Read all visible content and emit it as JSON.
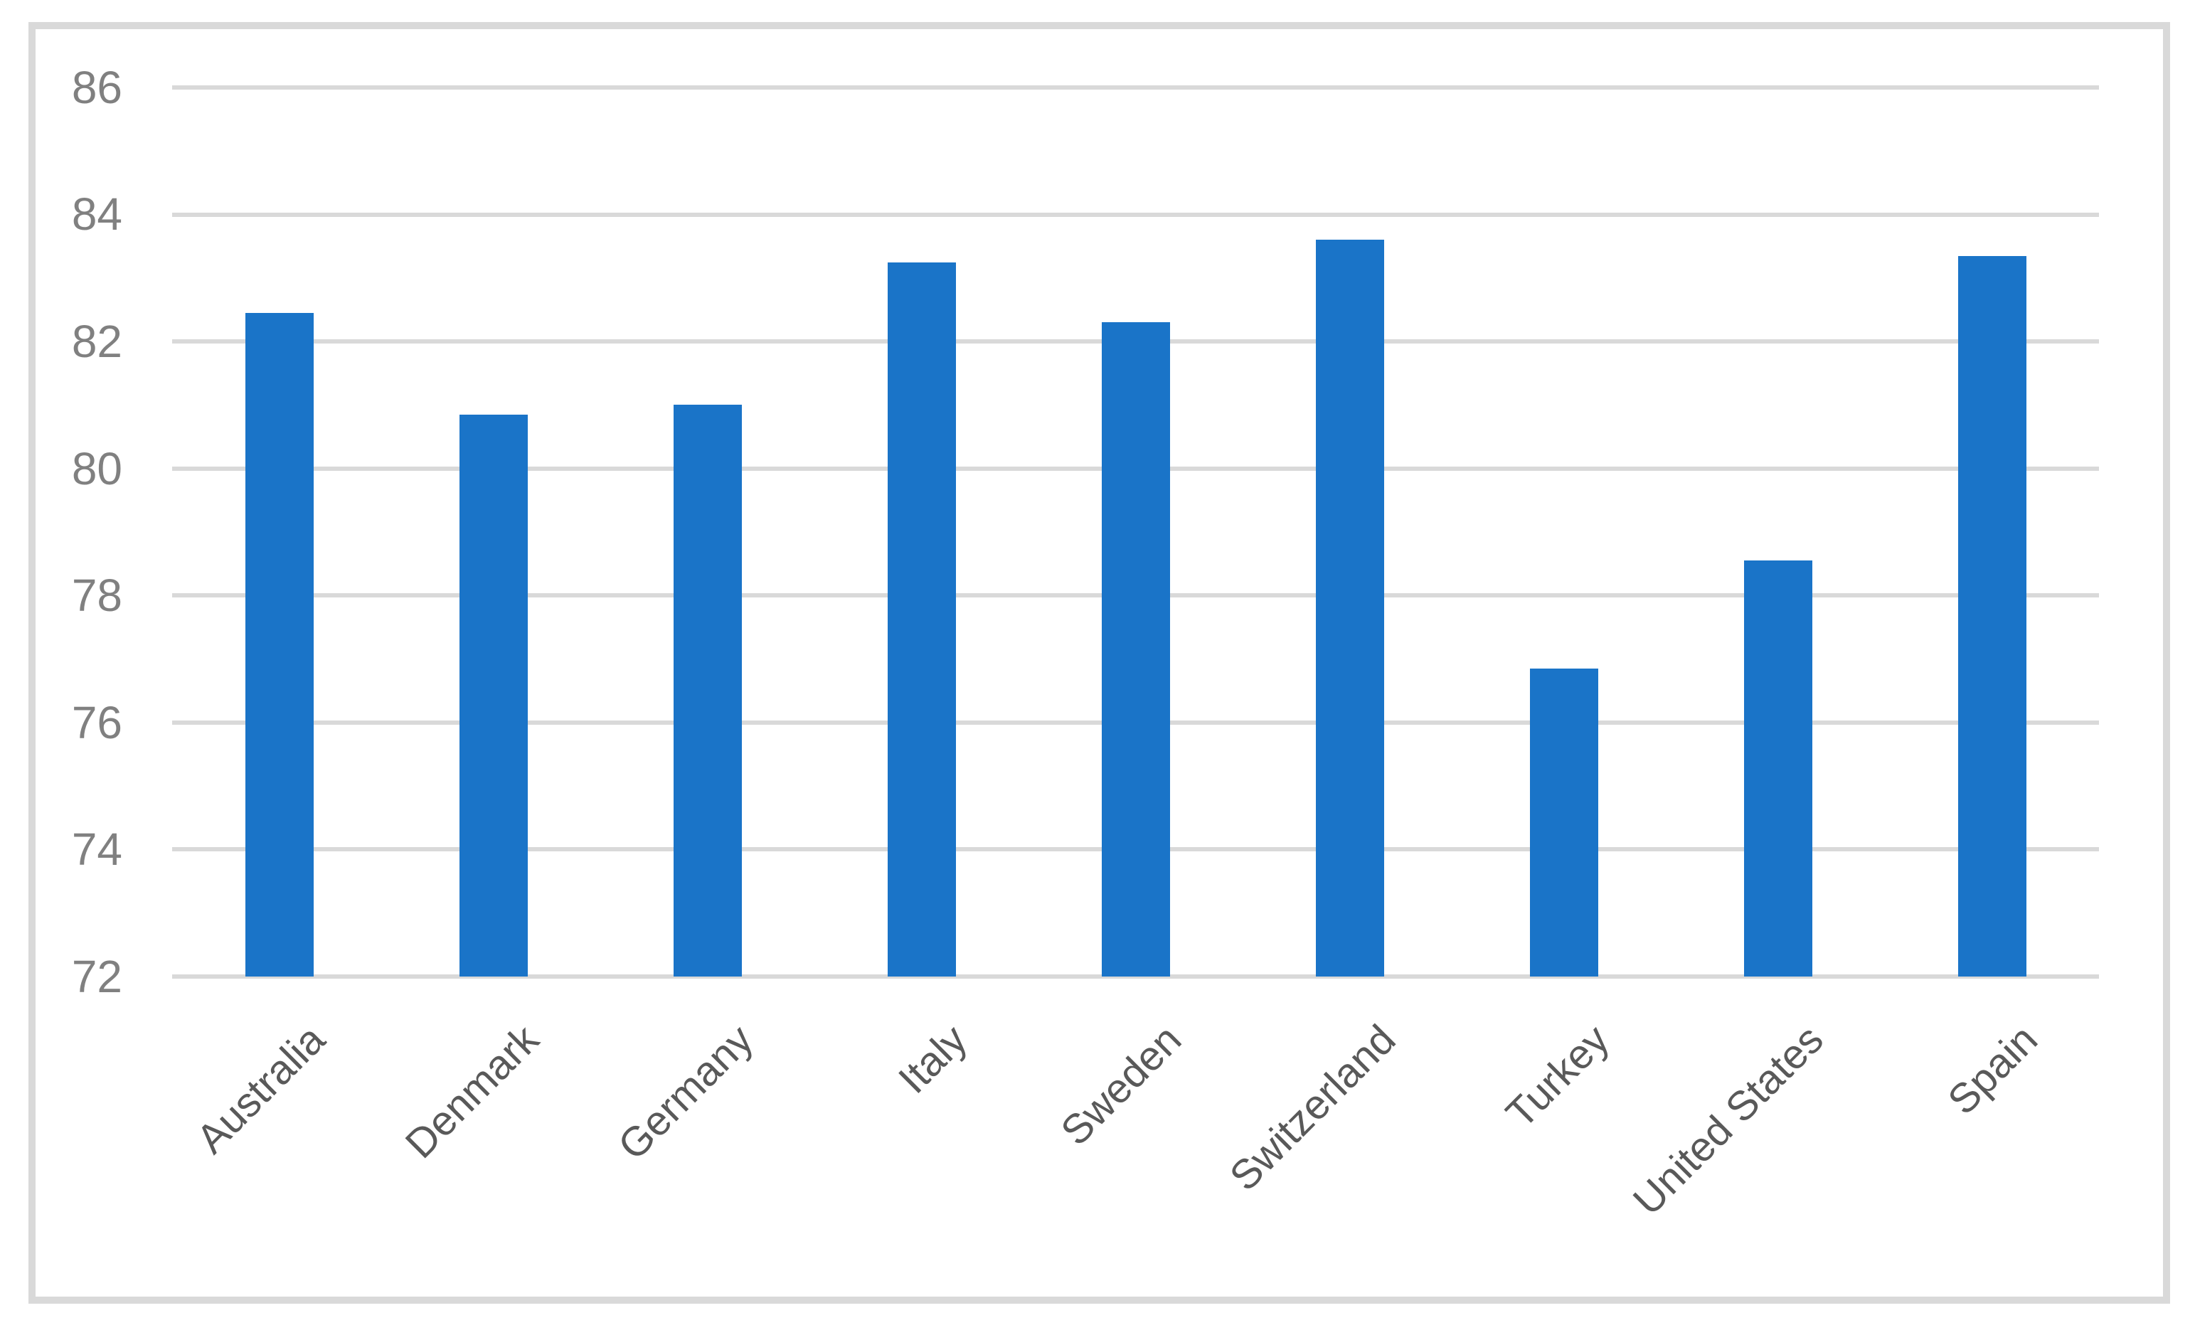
{
  "chart_data": {
    "type": "bar",
    "title": "",
    "xlabel": "",
    "ylabel": "",
    "categories": [
      "Australia",
      "Denmark",
      "Germany",
      "Italy",
      "Sweden",
      "Switzerland",
      "Turkey",
      "United States",
      "Spain"
    ],
    "values": [
      82.45,
      80.85,
      81.0,
      83.25,
      82.3,
      83.6,
      76.85,
      78.55,
      83.35
    ],
    "series_name": "",
    "ylim": [
      72,
      86
    ],
    "yticks": [
      72,
      74,
      76,
      78,
      80,
      82,
      84,
      86
    ],
    "grid": true,
    "legend_position": "none",
    "colors": {
      "bar_fill": "#1a74c8",
      "gridline": "#d9d9d9",
      "chart_border": "#d9d9d9",
      "y_tick_label": "#808080",
      "x_category_label": "#595959",
      "background": "#ffffff"
    }
  }
}
